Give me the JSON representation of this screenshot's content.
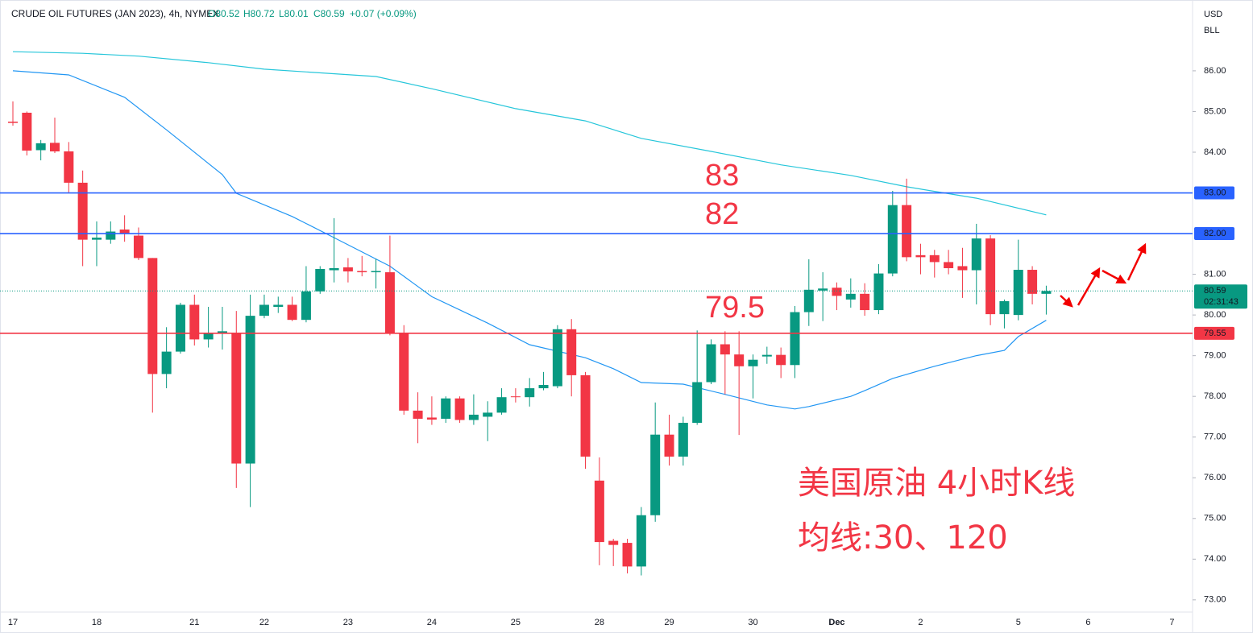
{
  "chart_data": {
    "type": "candlestick",
    "header": {
      "title": "CRUDE OIL FUTURES (JAN 2023), 4h, NYMEX",
      "ohlc": [
        "O80.52",
        "H80.72",
        "L80.01",
        "C80.59"
      ],
      "change": "+0.07 (+0.09%)"
    },
    "currency": "USD",
    "unit": "BLL",
    "categories": [
      "17",
      null,
      null,
      null,
      null,
      null,
      "18",
      null,
      null,
      null,
      null,
      null,
      null,
      "21",
      null,
      null,
      null,
      null,
      "22",
      null,
      null,
      null,
      null,
      null,
      "23",
      null,
      null,
      null,
      null,
      null,
      "24",
      null,
      null,
      null,
      null,
      null,
      "25",
      null,
      null,
      null,
      null,
      null,
      "28",
      null,
      null,
      null,
      null,
      "29",
      null,
      null,
      null,
      null,
      null,
      "30",
      null,
      null,
      null,
      null,
      null,
      "Dec",
      null,
      null,
      null,
      null,
      null,
      "2",
      null,
      null,
      null,
      null,
      null,
      null,
      "5",
      null,
      null,
      null,
      null,
      "6",
      null,
      null,
      null,
      null,
      null,
      "7",
      null
    ],
    "open": [
      84.75,
      84.97,
      84.05,
      84.23,
      84.02,
      83.25,
      81.85,
      81.85,
      82.1,
      81.95,
      81.4,
      78.55,
      79.1,
      80.25,
      79.4,
      79.55,
      79.55,
      76.35,
      79.98,
      80.2,
      80.25,
      79.88,
      80.58,
      81.1,
      81.17,
      81.08,
      81.05,
      81.05,
      79.55,
      77.65,
      77.48,
      77.45,
      77.95,
      77.42,
      77.5,
      77.6,
      78.0,
      77.98,
      78.2,
      78.25,
      79.65,
      78.52,
      75.93,
      74.45,
      74.4,
      73.82,
      75.08,
      77.06,
      76.52,
      77.35,
      78.35,
      79.28,
      79.03,
      78.74,
      78.98,
      79.02,
      78.77,
      80.07,
      80.6,
      80.67,
      80.38,
      80.52,
      80.12,
      81.02,
      82.7,
      81.47,
      81.47,
      81.3,
      81.2,
      81.1,
      81.88,
      80.02,
      80.0,
      81.11,
      80.52,
      null,
      null,
      null,
      null,
      null,
      null,
      null,
      null,
      null,
      null
    ],
    "high": [
      85.25,
      85.0,
      84.3,
      84.85,
      84.25,
      83.55,
      82.3,
      82.3,
      82.45,
      82.15,
      81.4,
      79.7,
      80.3,
      80.5,
      80.2,
      80.2,
      80.1,
      80.5,
      80.5,
      80.45,
      80.45,
      81.2,
      81.2,
      82.38,
      81.4,
      81.45,
      81.38,
      81.95,
      79.75,
      78.1,
      78.0,
      78.0,
      78.0,
      78.05,
      77.88,
      78.2,
      78.2,
      78.45,
      78.6,
      79.75,
      79.9,
      78.6,
      76.5,
      74.5,
      74.5,
      75.28,
      77.85,
      77.55,
      77.5,
      79.62,
      79.4,
      79.6,
      79.6,
      79.03,
      79.22,
      79.2,
      80.22,
      81.37,
      81.05,
      80.8,
      80.9,
      80.78,
      81.25,
      83.05,
      83.35,
      81.75,
      81.6,
      81.6,
      81.65,
      82.24,
      81.96,
      80.38,
      81.85,
      81.2,
      80.72,
      null,
      null,
      null,
      null,
      null,
      null,
      null,
      null,
      null,
      null
    ],
    "low": [
      84.65,
      83.92,
      83.8,
      83.98,
      83.0,
      81.2,
      81.2,
      81.75,
      81.8,
      81.35,
      77.6,
      78.2,
      79.05,
      79.25,
      79.2,
      79.15,
      75.75,
      75.28,
      79.92,
      80.05,
      79.85,
      79.82,
      80.52,
      80.8,
      80.8,
      80.95,
      80.65,
      79.5,
      77.55,
      76.85,
      77.3,
      77.35,
      77.35,
      77.3,
      76.9,
      77.55,
      77.85,
      77.75,
      78.15,
      78.2,
      78.0,
      76.22,
      73.85,
      73.83,
      73.65,
      73.6,
      74.92,
      76.3,
      76.3,
      77.3,
      78.3,
      78.05,
      77.05,
      77.95,
      78.8,
      78.45,
      78.45,
      79.73,
      79.85,
      80.12,
      80.18,
      79.98,
      80.02,
      80.95,
      81.32,
      81.0,
      80.92,
      81.0,
      80.42,
      80.26,
      79.75,
      79.67,
      79.87,
      80.26,
      80.01,
      null,
      null,
      null,
      null,
      null,
      null,
      null,
      null,
      null,
      null
    ],
    "close": [
      84.72,
      84.04,
      84.22,
      84.02,
      83.25,
      81.85,
      81.9,
      82.05,
      82.0,
      81.4,
      78.55,
      79.1,
      80.25,
      79.4,
      79.55,
      79.6,
      76.35,
      79.98,
      80.25,
      80.25,
      79.88,
      80.58,
      81.13,
      81.15,
      81.07,
      81.05,
      81.08,
      79.55,
      77.65,
      77.45,
      77.43,
      77.95,
      77.42,
      77.55,
      77.6,
      77.98,
      77.98,
      78.2,
      78.28,
      79.65,
      78.52,
      76.52,
      74.42,
      74.35,
      73.82,
      75.08,
      77.06,
      76.52,
      77.35,
      78.35,
      79.28,
      79.03,
      78.74,
      78.9,
      79.02,
      78.77,
      80.07,
      80.62,
      80.65,
      80.47,
      80.52,
      80.12,
      81.02,
      82.7,
      81.42,
      81.42,
      81.3,
      81.15,
      81.1,
      81.88,
      80.02,
      80.34,
      81.11,
      80.52,
      80.59,
      null,
      null,
      null,
      null,
      null,
      null,
      null,
      null,
      null,
      null
    ],
    "up_color": "#089981",
    "down_color": "#f23645",
    "lines": [
      {
        "color": "#2196f3",
        "x": [
          0,
          4,
          8,
          11,
          15,
          16,
          20,
          23,
          27,
          30,
          34,
          37,
          41,
          43,
          45,
          48,
          51,
          54,
          56,
          57,
          60,
          61,
          63,
          66,
          69,
          71,
          72,
          74
        ],
        "values": [
          86.0,
          85.9,
          85.35,
          84.55,
          83.45,
          82.99,
          82.42,
          81.9,
          81.2,
          80.45,
          79.8,
          79.27,
          78.95,
          78.68,
          78.34,
          78.3,
          78.05,
          77.79,
          77.69,
          77.75,
          78.0,
          78.14,
          78.44,
          78.74,
          79.0,
          79.13,
          79.47,
          79.87
        ]
      },
      {
        "color": "#26c6da",
        "x": [
          0,
          5,
          9,
          14,
          18,
          26,
          30,
          36,
          41,
          45,
          50,
          55,
          60,
          64,
          69,
          74
        ],
        "values": [
          86.47,
          86.43,
          86.36,
          86.2,
          86.04,
          85.86,
          85.56,
          85.07,
          84.77,
          84.34,
          84.02,
          83.69,
          83.43,
          83.15,
          82.87,
          82.46
        ]
      }
    ],
    "levels": [
      {
        "value": 83,
        "label": "83.00",
        "color": "#2962ff"
      },
      {
        "value": 82,
        "label": "82.00",
        "color": "#2962ff"
      },
      {
        "value": 79.55,
        "label": "79.55",
        "color": "#f23645"
      }
    ],
    "last_price": 80.59,
    "countdown": "02:31:43",
    "last_color": "#089981",
    "ylim": [
      72.7,
      87.74
    ],
    "yticks": [
      {
        "value": 73,
        "label": "73.00"
      },
      {
        "value": 74,
        "label": "74.00"
      },
      {
        "value": 75,
        "label": "75.00"
      },
      {
        "value": 76,
        "label": "76.00"
      },
      {
        "value": 77,
        "label": "77.00"
      },
      {
        "value": 78,
        "label": "78.00"
      },
      {
        "value": 79,
        "label": "79.00"
      },
      {
        "value": 80,
        "label": "80.00"
      },
      {
        "value": 81,
        "label": "81.00"
      },
      {
        "value": 84,
        "label": "84.00"
      },
      {
        "value": 85,
        "label": "85.00"
      },
      {
        "value": 86,
        "label": "86.00"
      }
    ],
    "annotations": [
      "83",
      "82",
      "79.5",
      "美国原油 4小时K线",
      "均线:30、120"
    ]
  }
}
